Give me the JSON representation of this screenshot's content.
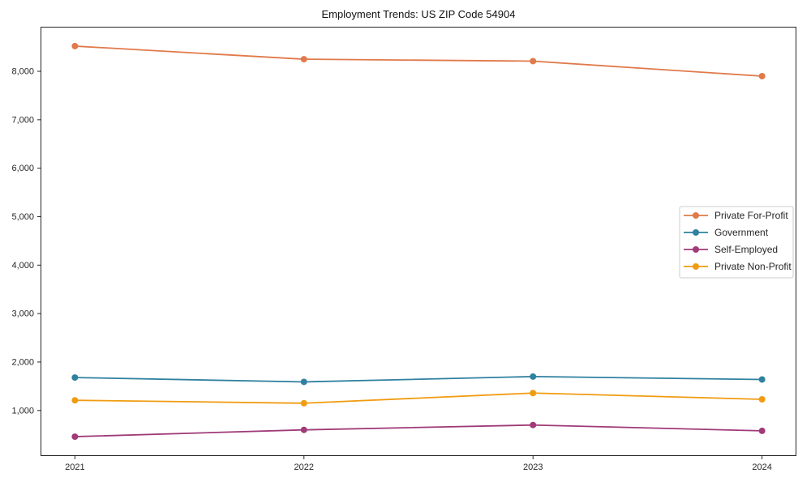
{
  "chart_data": {
    "type": "line",
    "title": "Employment Trends: US ZIP Code 54904",
    "xlabel": "",
    "ylabel": "",
    "x": [
      2021,
      2022,
      2023,
      2024
    ],
    "x_tick_labels": [
      "2021",
      "2022",
      "2023",
      "2024"
    ],
    "series": [
      {
        "name": "Private For-Profit",
        "color": "#e1794a",
        "values": [
          8520,
          8250,
          8210,
          7900
        ]
      },
      {
        "name": "Government",
        "color": "#2f819f",
        "values": [
          1680,
          1590,
          1700,
          1640
        ]
      },
      {
        "name": "Self-Employed",
        "color": "#a03a78",
        "values": [
          460,
          600,
          700,
          580
        ]
      },
      {
        "name": "Private Non-Profit",
        "color": "#f09c12",
        "values": [
          1210,
          1150,
          1360,
          1230
        ]
      }
    ],
    "y_ticks": [
      1000,
      2000,
      3000,
      4000,
      5000,
      6000,
      7000,
      8000
    ],
    "y_tick_labels": [
      "1,000",
      "2,000",
      "3,000",
      "4,000",
      "5,000",
      "6,000",
      "7,000",
      "8,000"
    ],
    "xlim": [
      2020.85,
      2024.15
    ],
    "ylim": [
      60,
      8920
    ],
    "grid": false,
    "legend_position": "center-right",
    "marker": "circle",
    "axis_color": "#262626",
    "legend_border_color": "#cccccc",
    "background_color": "#ffffff"
  }
}
